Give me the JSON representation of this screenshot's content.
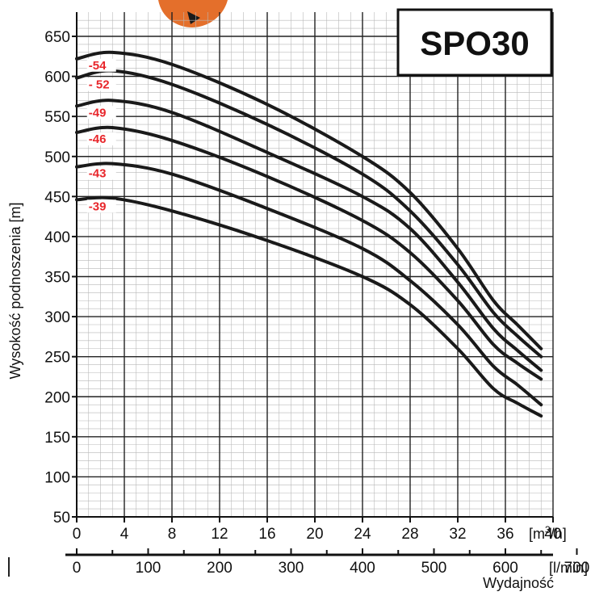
{
  "chart_data": {
    "type": "line",
    "title": "SPO30",
    "xlabel": "Wydajność",
    "ylabel": "Wysokość podnoszenia [m]",
    "x_unit": "[m3/h]",
    "x_unit_base": "[m",
    "x_unit_sup": "3",
    "x_unit_end": "/h]",
    "x2_unit": "[l/min]",
    "xlim": [
      0,
      40
    ],
    "ylim": [
      50,
      650
    ],
    "x_ticks": [
      0,
      4,
      8,
      12,
      16,
      20,
      24,
      28,
      32,
      36,
      40
    ],
    "x2_ticks": [
      0,
      100,
      200,
      300,
      400,
      500,
      600,
      700
    ],
    "y_ticks": [
      50,
      100,
      150,
      200,
      250,
      300,
      350,
      400,
      450,
      500,
      550,
      600,
      650
    ],
    "grid": true,
    "label_color": "#e8262b",
    "series": [
      {
        "name": "-54",
        "x": [
          0,
          3,
          8,
          16,
          24,
          28,
          32,
          35,
          37,
          39
        ],
        "y": [
          622,
          630,
          615,
          565,
          500,
          455,
          385,
          320,
          290,
          260
        ]
      },
      {
        "name": "- 52",
        "x": [
          0,
          3,
          8,
          16,
          24,
          28,
          32,
          35,
          37,
          39
        ],
        "y": [
          598,
          607,
          590,
          540,
          478,
          432,
          365,
          305,
          276,
          250
        ]
      },
      {
        "name": "-49",
        "x": [
          0,
          3,
          8,
          16,
          24,
          28,
          32,
          35,
          37,
          39
        ],
        "y": [
          563,
          570,
          555,
          505,
          450,
          410,
          343,
          285,
          258,
          233
        ]
      },
      {
        "name": "-46",
        "x": [
          0,
          3,
          8,
          16,
          24,
          28,
          32,
          35,
          37,
          39
        ],
        "y": [
          530,
          536,
          520,
          475,
          420,
          380,
          320,
          265,
          242,
          222
        ]
      },
      {
        "name": "-43",
        "x": [
          0,
          3,
          8,
          16,
          24,
          28,
          32,
          35,
          37,
          39
        ],
        "y": [
          487,
          491,
          478,
          435,
          385,
          345,
          290,
          238,
          215,
          190
        ]
      },
      {
        "name": "-39",
        "x": [
          0,
          3,
          8,
          16,
          24,
          28,
          32,
          35,
          37,
          39
        ],
        "y": [
          446,
          448,
          432,
          395,
          350,
          315,
          260,
          210,
          192,
          176
        ]
      }
    ]
  }
}
